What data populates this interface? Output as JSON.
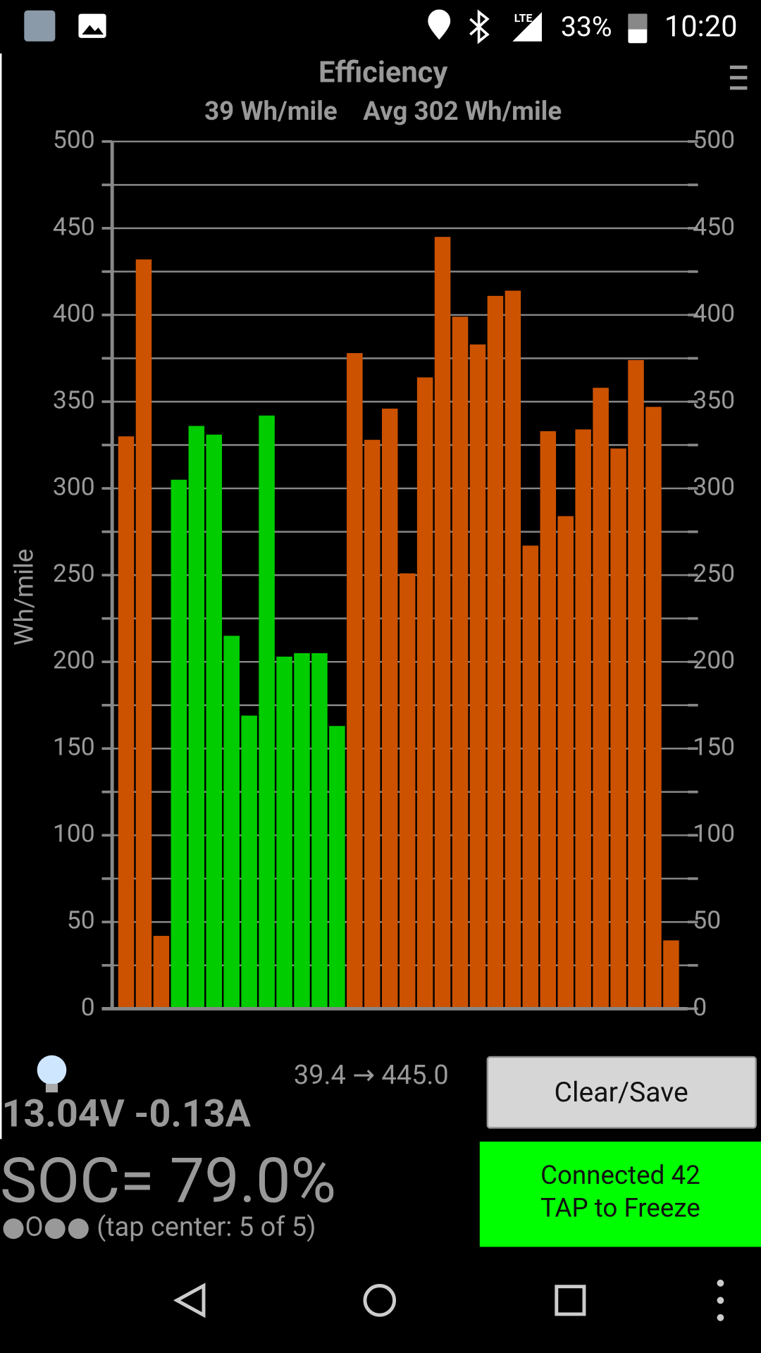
{
  "status_bar": {
    "network": "LTE",
    "battery": "33%",
    "time": "10:20"
  },
  "chart_data": {
    "type": "bar",
    "title": "Efficiency",
    "subtitle": "39 Wh/mile    Avg 302 Wh/mile",
    "y_label": "Wh/mile",
    "values": [
      330,
      432,
      42,
      305,
      336,
      331,
      215,
      169,
      342,
      203,
      205,
      205,
      163,
      378,
      328,
      346,
      251,
      364,
      445,
      399,
      383,
      411,
      414,
      267,
      333,
      284,
      334,
      358,
      323,
      374,
      347,
      39.4
    ],
    "colors": [
      "#cc5200",
      "#cc5200",
      "#cc5200",
      "#00cc00",
      "#00cc00",
      "#00cc00",
      "#00cc00",
      "#00cc00",
      "#00cc00",
      "#00cc00",
      "#00cc00",
      "#00cc00",
      "#00cc00",
      "#cc5200",
      "#cc5200",
      "#cc5200",
      "#cc5200",
      "#cc5200",
      "#cc5200",
      "#cc5200",
      "#cc5200",
      "#cc5200",
      "#cc5200",
      "#cc5200",
      "#cc5200",
      "#cc5200",
      "#cc5200",
      "#cc5200",
      "#cc5200",
      "#cc5200",
      "#cc5200",
      "#cc5200"
    ],
    "ylim": [
      0,
      500
    ],
    "yticks": [
      0,
      50,
      100,
      150,
      200,
      250,
      300,
      350,
      400,
      450,
      500
    ],
    "minor_yticks": [
      25,
      75,
      125,
      175,
      225,
      275,
      325,
      375,
      425,
      475
    ],
    "grid": true,
    "right_axis": true
  },
  "readout": {
    "range": "39.4 → 445.0",
    "voltage_current": "13.04V -0.13A",
    "soc": "SOC= 79.0%",
    "page_indicator": "●O●● (tap center: 5 of 5)"
  },
  "controls": {
    "clear_save": "Clear/Save",
    "connected": "Connected 42",
    "freeze": "TAP to Freeze"
  }
}
